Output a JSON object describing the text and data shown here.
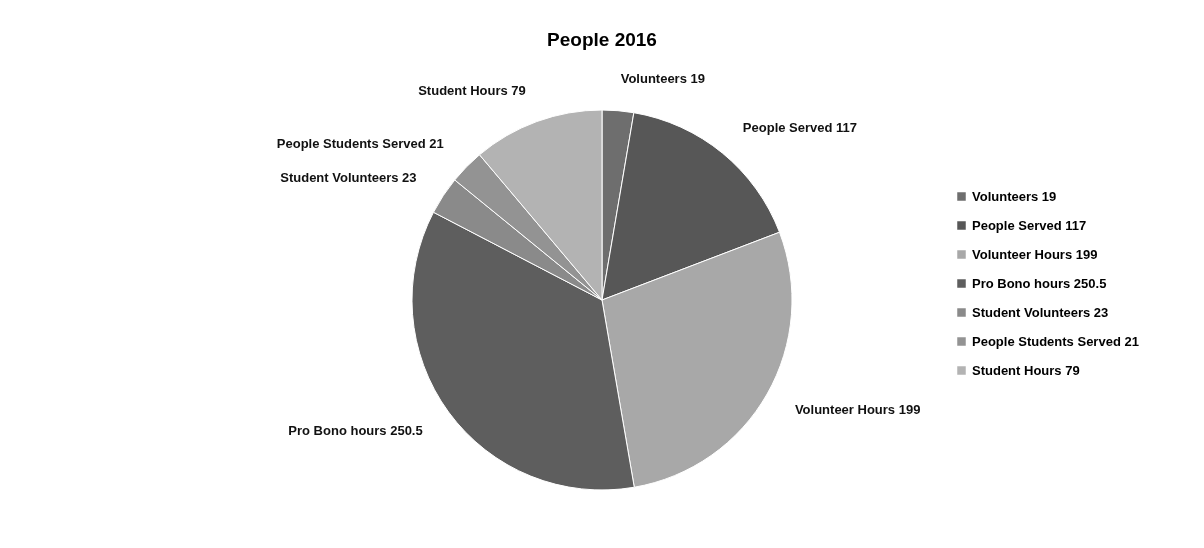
{
  "chart_data": {
    "type": "pie",
    "title": "People 2016",
    "categories": [
      "Volunteers 19",
      "People Served 117",
      "Volunteer Hours 199",
      "Pro Bono hours 250.5",
      "Student Volunteers 23",
      "People Students Served 21",
      "Student Hours 79"
    ],
    "values": [
      19,
      117,
      199,
      250.5,
      23,
      21,
      79
    ],
    "colors": [
      "#6e6e6e",
      "#575757",
      "#a8a8a8",
      "#5e5e5e",
      "#8a8a8a",
      "#939393",
      "#b3b3b3"
    ],
    "legend": "right"
  }
}
